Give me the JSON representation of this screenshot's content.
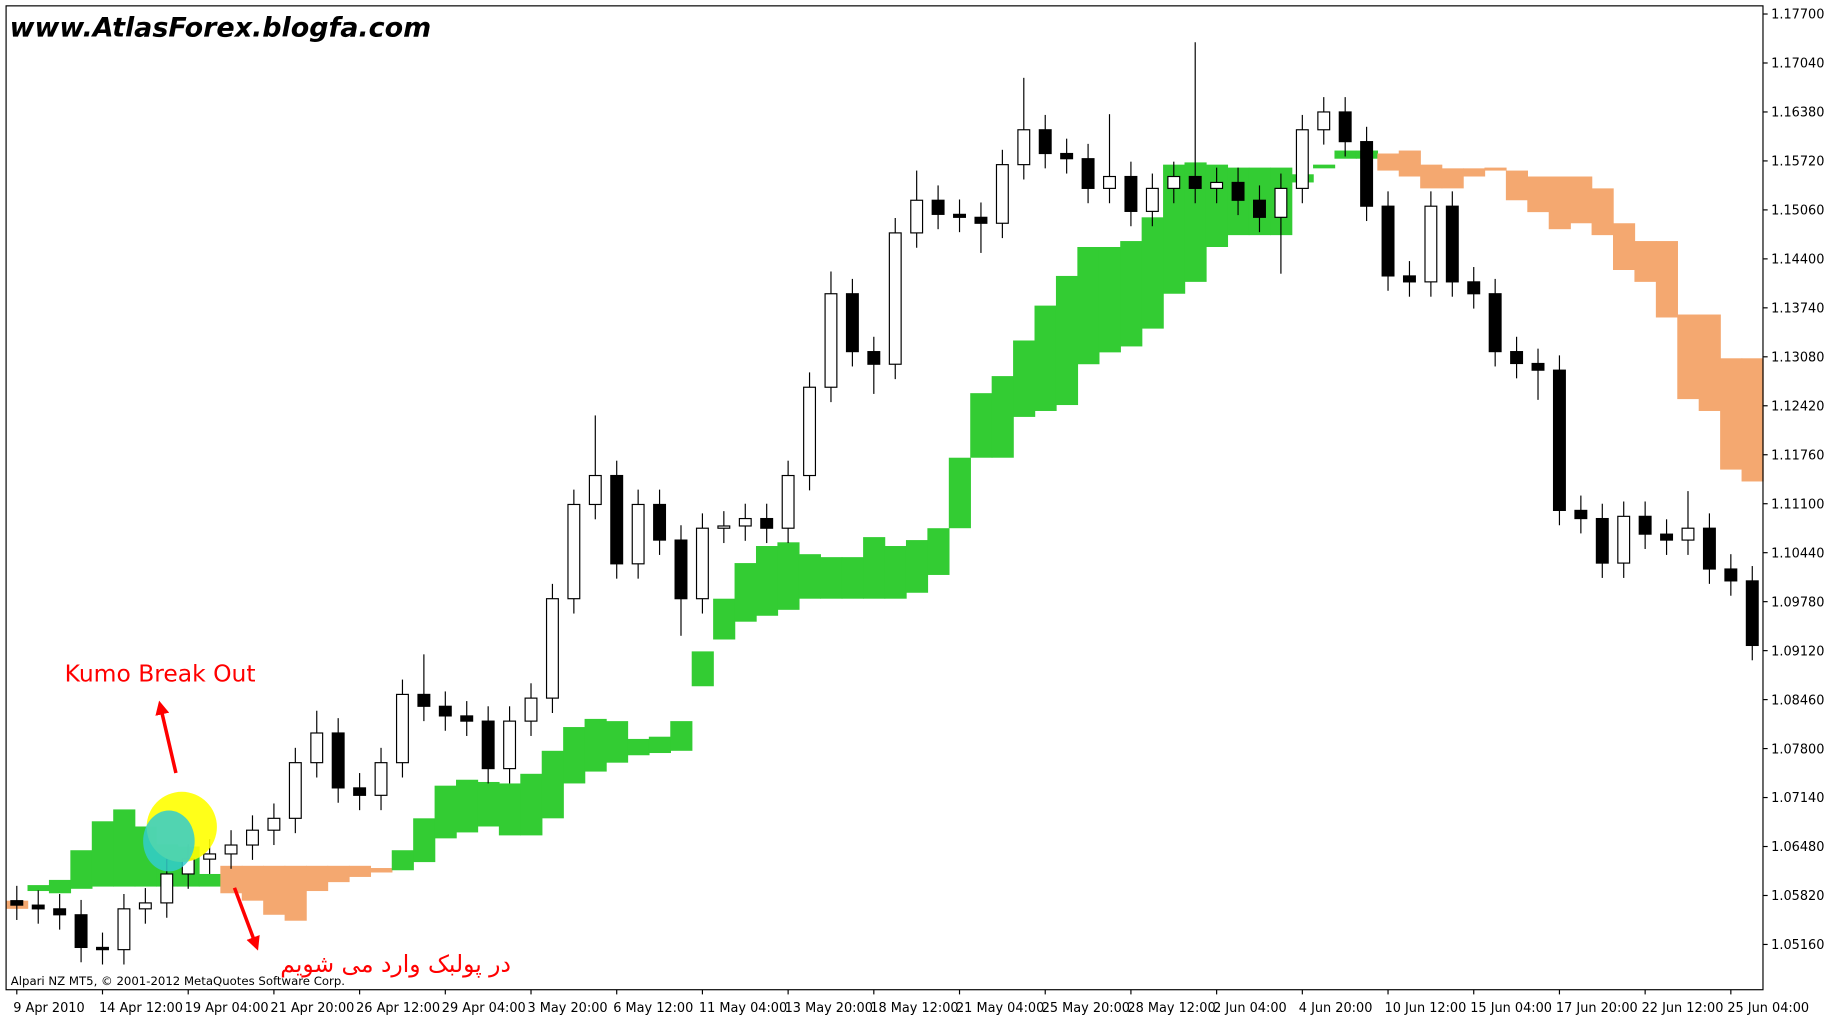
{
  "chart_data": {
    "type": "candlestick",
    "title": "www.AtlasForex.blogfa.com",
    "annotations": [
      "Kumo Break Out",
      "در پولبک وارد می شویم"
    ],
    "footer": "Alpari NZ MT5, © 2001-2012 MetaQuotes Software Corp.",
    "categories": [
      "9 Apr 2010",
      null,
      null,
      null,
      "14 Apr 12:00",
      null,
      null,
      null,
      "19 Apr 04:00",
      null,
      null,
      null,
      "21 Apr 20:00",
      null,
      null,
      null,
      "26 Apr 12:00",
      null,
      null,
      null,
      "29 Apr 04:00",
      null,
      null,
      null,
      "3 May 20:00",
      null,
      null,
      null,
      "6 May 12:00",
      null,
      null,
      null,
      "11 May 04:00",
      null,
      null,
      null,
      "13 May 20:00",
      null,
      null,
      null,
      "18 May 12:00",
      null,
      null,
      null,
      "21 May 04:00",
      null,
      null,
      null,
      "25 May 20:00",
      null,
      null,
      null,
      "28 May 12:00",
      null,
      null,
      null,
      "2 Jun 04:00",
      null,
      null,
      null,
      "4 Jun 20:00",
      null,
      null,
      null,
      "10 Jun 12:00",
      null,
      null,
      null,
      "15 Jun 04:00",
      null,
      null,
      null,
      "17 Jun 20:00",
      null,
      null,
      null,
      "22 Jun 12:00",
      null,
      null,
      null,
      "25 Jun 04:00",
      null
    ],
    "open": [
      1.0575,
      1.0569,
      1.0564,
      1.0556,
      1.0512,
      1.0509,
      1.0564,
      1.0572,
      1.0611,
      1.0631,
      1.0638,
      1.065,
      1.067,
      1.0686,
      1.0761,
      1.0801,
      1.0727,
      1.0717,
      1.0761,
      1.0853,
      1.0837,
      1.0824,
      1.0817,
      1.0753,
      1.0817,
      1.0848,
      1.0982,
      1.1109,
      1.1148,
      1.1029,
      1.1109,
      1.1061,
      1.0982,
      1.1077,
      1.108,
      1.109,
      1.1077,
      1.1148,
      1.1267,
      1.1393,
      1.1315,
      1.1298,
      1.1475,
      1.1519,
      1.15,
      1.1496,
      1.1488,
      1.1567,
      1.1614,
      1.1582,
      1.1575,
      1.1535,
      1.1551,
      1.1504,
      1.1535,
      1.1551,
      1.1535,
      1.1543,
      1.1519,
      1.1496,
      1.1535,
      1.1614,
      1.1638,
      1.1598,
      1.1511,
      1.1417,
      1.1409,
      1.1511,
      1.1409,
      1.1393,
      1.1315,
      1.1299,
      1.129,
      1.1101,
      1.109,
      1.103,
      1.1093,
      1.1069,
      1.1061,
      1.1077,
      1.1022,
      1.1006
    ],
    "high": [
      1.0595,
      1.0589,
      1.0584,
      1.0576,
      1.0532,
      1.0584,
      1.0592,
      1.0631,
      1.0651,
      1.0658,
      1.067,
      1.069,
      1.0706,
      1.0781,
      1.0831,
      1.0821,
      1.0747,
      1.0781,
      1.0873,
      1.0907,
      1.0857,
      1.0844,
      1.0837,
      1.0837,
      1.0868,
      1.1002,
      1.1129,
      1.1229,
      1.1168,
      1.1129,
      1.1129,
      1.1081,
      1.1097,
      1.11,
      1.111,
      1.111,
      1.1168,
      1.1287,
      1.1423,
      1.1413,
      1.1335,
      1.1495,
      1.1559,
      1.1539,
      1.152,
      1.1516,
      1.1587,
      1.1684,
      1.1634,
      1.1602,
      1.1595,
      1.1635,
      1.1571,
      1.1555,
      1.1571,
      1.1732,
      1.1563,
      1.1563,
      1.1539,
      1.1555,
      1.1634,
      1.1658,
      1.1658,
      1.1618,
      1.1531,
      1.1437,
      1.1531,
      1.1531,
      1.1429,
      1.1413,
      1.1335,
      1.1319,
      1.131,
      1.1121,
      1.111,
      1.1113,
      1.1113,
      1.1089,
      1.1127,
      1.1097,
      1.1042,
      1.1026
    ],
    "low": [
      1.0549,
      1.0544,
      1.0536,
      1.0492,
      1.0489,
      1.0489,
      1.0544,
      1.0552,
      1.0591,
      1.0611,
      1.0618,
      1.063,
      1.065,
      1.0666,
      1.0741,
      1.0707,
      1.0697,
      1.0697,
      1.0741,
      1.0817,
      1.0804,
      1.0797,
      1.0733,
      1.0733,
      1.0797,
      1.0828,
      1.0962,
      1.1089,
      1.1009,
      1.1009,
      1.1041,
      1.0932,
      1.0962,
      1.1057,
      1.106,
      1.1057,
      1.1057,
      1.1128,
      1.1247,
      1.1295,
      1.1258,
      1.1278,
      1.1455,
      1.148,
      1.1476,
      1.1448,
      1.1468,
      1.1547,
      1.1562,
      1.1555,
      1.1515,
      1.1515,
      1.1484,
      1.1484,
      1.1515,
      1.1515,
      1.1515,
      1.1499,
      1.1476,
      1.142,
      1.1515,
      1.1594,
      1.1578,
      1.1491,
      1.1397,
      1.1389,
      1.1389,
      1.1389,
      1.1373,
      1.1295,
      1.1279,
      1.125,
      1.1081,
      1.107,
      1.101,
      1.101,
      1.1049,
      1.1041,
      1.1041,
      1.1002,
      1.0986,
      1.0899
    ],
    "close": [
      1.0569,
      1.0564,
      1.0556,
      1.0512,
      1.0509,
      1.0564,
      1.0572,
      1.0611,
      1.0631,
      1.0638,
      1.065,
      1.067,
      1.0686,
      1.0761,
      1.0801,
      1.0727,
      1.0717,
      1.0761,
      1.0853,
      1.0837,
      1.0824,
      1.0817,
      1.0753,
      1.0817,
      1.0848,
      1.0982,
      1.1109,
      1.1148,
      1.1029,
      1.1109,
      1.1061,
      1.0982,
      1.1077,
      1.108,
      1.109,
      1.1077,
      1.1148,
      1.1267,
      1.1393,
      1.1315,
      1.1298,
      1.1475,
      1.1519,
      1.15,
      1.1496,
      1.1488,
      1.1567,
      1.1614,
      1.1582,
      1.1575,
      1.1535,
      1.1551,
      1.1504,
      1.1535,
      1.1551,
      1.1535,
      1.1543,
      1.1519,
      1.1496,
      1.1535,
      1.1614,
      1.1638,
      1.1598,
      1.1511,
      1.1417,
      1.1409,
      1.1511,
      1.1409,
      1.1393,
      1.1315,
      1.1299,
      1.129,
      1.1101,
      1.109,
      1.103,
      1.1093,
      1.1069,
      1.1061,
      1.1077,
      1.1022,
      1.1006,
      1.0919
    ],
    "span_a": [
      1.0564,
      1.0596,
      1.0603,
      1.0643,
      1.0682,
      1.0698,
      1.0675,
      1.0651,
      1.0648,
      1.0611,
      1.0585,
      1.0575,
      1.0556,
      1.0548,
      1.0588,
      1.06,
      1.0607,
      1.0613,
      1.0643,
      1.0686,
      1.073,
      1.0738,
      1.0735,
      1.0733,
      1.0746,
      1.0777,
      1.0809,
      1.082,
      1.0817,
      1.0793,
      1.0796,
      1.0817,
      1.0911,
      1.0982,
      1.103,
      1.1053,
      1.1058,
      1.1042,
      1.1038,
      1.1038,
      1.1065,
      1.1053,
      1.1061,
      1.1077,
      1.1172,
      1.1259,
      1.1282,
      1.133,
      1.1377,
      1.1417,
      1.1456,
      1.1456,
      1.1464,
      1.1496,
      1.1567,
      1.157,
      1.1567,
      1.1563,
      1.1563,
      1.1563,
      1.1554,
      1.1567,
      1.1586,
      1.1586,
      1.1559,
      1.1551,
      1.1535,
      1.1535,
      1.1551,
      1.1559,
      1.1519,
      1.1503,
      1.148,
      1.1488,
      1.1472,
      1.1425,
      1.1409,
      1.1361,
      1.1251,
      1.1235,
      1.1156,
      1.114
    ],
    "span_b": [
      1.0575,
      1.0588,
      1.0585,
      1.0591,
      1.0594,
      1.0594,
      1.0594,
      1.0594,
      1.0594,
      1.0594,
      1.0622,
      1.0622,
      1.0622,
      1.0622,
      1.0622,
      1.0622,
      1.0622,
      1.0619,
      1.0616,
      1.0627,
      1.0659,
      1.0667,
      1.0675,
      1.0663,
      1.0663,
      1.0686,
      1.0733,
      1.0749,
      1.0761,
      1.0771,
      1.0774,
      1.0777,
      1.0864,
      1.0927,
      1.0951,
      1.0959,
      1.0967,
      1.0982,
      1.0982,
      1.0982,
      1.0982,
      1.0982,
      1.099,
      1.1014,
      1.1077,
      1.1172,
      1.1172,
      1.1227,
      1.1235,
      1.1243,
      1.1298,
      1.1314,
      1.1322,
      1.1346,
      1.1393,
      1.1409,
      1.1456,
      1.1472,
      1.1472,
      1.1472,
      1.1543,
      1.1562,
      1.1575,
      1.1575,
      1.1582,
      1.1586,
      1.1567,
      1.1562,
      1.1562,
      1.1563,
      1.1559,
      1.1551,
      1.1551,
      1.1551,
      1.1535,
      1.1488,
      1.1464,
      1.1464,
      1.1365,
      1.1365,
      1.1306,
      1.1306
    ],
    "cloud_colors": {
      "bullish": "#33cc33",
      "bearish": "#f4a870"
    },
    "candle_colors": {
      "up": "#ffffff",
      "down": "#000000",
      "outline": "#000000"
    },
    "ylim": [
      1.0455,
      1.1781
    ],
    "yticks": [
      {
        "value": 1.177,
        "label": "1.17700"
      },
      {
        "value": 1.1704,
        "label": "1.17040"
      },
      {
        "value": 1.1638,
        "label": "1.16380"
      },
      {
        "value": 1.1572,
        "label": "1.15720"
      },
      {
        "value": 1.1506,
        "label": "1.15060"
      },
      {
        "value": 1.144,
        "label": "1.14400"
      },
      {
        "value": 1.1374,
        "label": "1.13740"
      },
      {
        "value": 1.1308,
        "label": "1.13080"
      },
      {
        "value": 1.1242,
        "label": "1.12420"
      },
      {
        "value": 1.1176,
        "label": "1.11760"
      },
      {
        "value": 1.111,
        "label": "1.11100"
      },
      {
        "value": 1.1044,
        "label": "1.10440"
      },
      {
        "value": 1.0978,
        "label": "1.09780"
      },
      {
        "value": 1.0912,
        "label": "1.09120"
      },
      {
        "value": 1.0846,
        "label": "1.08460"
      },
      {
        "value": 1.078,
        "label": "1.07800"
      },
      {
        "value": 1.0714,
        "label": "1.07140"
      },
      {
        "value": 1.0648,
        "label": "1.06480"
      },
      {
        "value": 1.0582,
        "label": "1.05820"
      },
      {
        "value": 1.0516,
        "label": "1.05160"
      }
    ],
    "grid": false
  }
}
